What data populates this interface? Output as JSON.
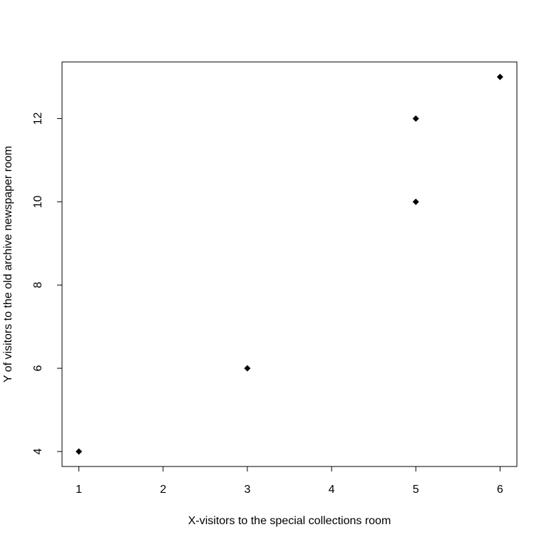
{
  "chart_data": {
    "type": "scatter",
    "xlabel": "X-visitors to the special collections room",
    "ylabel": "Y of visitors to the old archive newspaper room",
    "x": [
      1,
      3,
      5,
      5,
      6
    ],
    "values": [
      4,
      6,
      10,
      12,
      13
    ],
    "color": "#000000",
    "xlim": [
      0.8,
      6.2
    ],
    "ylim": [
      3.64,
      13.36
    ],
    "xticks": [
      1,
      2,
      3,
      4,
      5,
      6
    ],
    "yticks": [
      4,
      6,
      8,
      10,
      12
    ]
  }
}
